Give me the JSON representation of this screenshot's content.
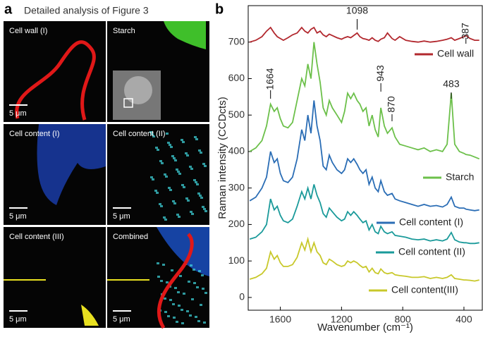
{
  "panel_a": {
    "letter": "a",
    "title": "Detailed analysis of Figure 3",
    "images": [
      {
        "label": "Cell wall (I)",
        "scale_bar": "5 μm"
      },
      {
        "label": "Starch"
      },
      {
        "label": "Cell content (I)",
        "scale_bar": "5 μm"
      },
      {
        "label": "Cell content (II)",
        "scale_bar": "5 μm"
      },
      {
        "label": "Cell content (III)",
        "scale_bar": "5 μm"
      },
      {
        "label": "Combined",
        "scale_bar": "5 μm"
      }
    ]
  },
  "chart_data": {
    "type": "line",
    "panel_letter": "b",
    "xlabel": "Wavenumber (cm⁻¹)",
    "ylabel": "Raman intensity (CCDcts)",
    "xlim": [
      1810,
      280
    ],
    "xticks": [
      1600,
      1200,
      800,
      400
    ],
    "ylim": [
      -35,
      800
    ],
    "yticks": [
      0,
      100,
      200,
      300,
      400,
      500,
      600,
      700
    ],
    "annotations": [
      1098,
      387,
      1664,
      943,
      870,
      483
    ],
    "x": [
      1800,
      1760,
      1720,
      1690,
      1664,
      1640,
      1620,
      1600,
      1580,
      1550,
      1520,
      1490,
      1460,
      1440,
      1420,
      1400,
      1380,
      1360,
      1340,
      1320,
      1300,
      1280,
      1260,
      1230,
      1200,
      1180,
      1160,
      1140,
      1120,
      1098,
      1080,
      1060,
      1040,
      1020,
      1000,
      980,
      960,
      943,
      920,
      900,
      870,
      850,
      820,
      780,
      740,
      700,
      660,
      620,
      580,
      540,
      510,
      483,
      460,
      430,
      400,
      387,
      360,
      330,
      300
    ],
    "series": [
      {
        "name": "Cell wall",
        "color": "#b2282e",
        "values": [
          700,
          705,
          715,
          730,
          740,
          725,
          715,
          710,
          705,
          712,
          720,
          725,
          740,
          730,
          725,
          735,
          740,
          725,
          730,
          720,
          715,
          722,
          718,
          712,
          708,
          712,
          715,
          712,
          718,
          725,
          715,
          710,
          708,
          705,
          712,
          705,
          702,
          708,
          712,
          725,
          710,
          705,
          715,
          705,
          702,
          700,
          703,
          700,
          702,
          705,
          708,
          712,
          705,
          710,
          715,
          718,
          710,
          705,
          705
        ]
      },
      {
        "name": "Starch",
        "color": "#6cc04a",
        "values": [
          400,
          410,
          430,
          470,
          530,
          510,
          520,
          490,
          470,
          465,
          480,
          540,
          600,
          580,
          640,
          600,
          700,
          640,
          590,
          520,
          500,
          540,
          520,
          500,
          480,
          510,
          560,
          545,
          560,
          540,
          530,
          510,
          520,
          470,
          500,
          460,
          440,
          520,
          470,
          450,
          465,
          440,
          420,
          415,
          410,
          405,
          410,
          400,
          405,
          400,
          420,
          560,
          420,
          400,
          395,
          392,
          390,
          385,
          380
        ]
      },
      {
        "name": "Cell content (I)",
        "color": "#2a6db5",
        "values": [
          265,
          275,
          300,
          330,
          400,
          370,
          380,
          340,
          320,
          315,
          330,
          380,
          460,
          430,
          500,
          450,
          540,
          470,
          430,
          360,
          350,
          390,
          370,
          350,
          340,
          350,
          380,
          370,
          380,
          365,
          350,
          340,
          350,
          310,
          330,
          300,
          290,
          320,
          290,
          280,
          285,
          270,
          265,
          260,
          255,
          250,
          255,
          250,
          252,
          248,
          255,
          275,
          250,
          245,
          245,
          242,
          240,
          238,
          240
        ]
      },
      {
        "name": "Cell content (II)",
        "color": "#1a9a9a",
        "values": [
          160,
          165,
          180,
          200,
          270,
          240,
          250,
          225,
          210,
          205,
          215,
          250,
          290,
          270,
          300,
          270,
          310,
          280,
          260,
          230,
          220,
          245,
          235,
          220,
          210,
          215,
          235,
          225,
          235,
          225,
          215,
          205,
          210,
          185,
          200,
          180,
          175,
          195,
          180,
          175,
          180,
          170,
          168,
          165,
          160,
          158,
          160,
          155,
          158,
          155,
          160,
          178,
          158,
          152,
          150,
          150,
          148,
          148,
          150
        ]
      },
      {
        "name": "Cell content(III)",
        "color": "#c8c82a",
        "values": [
          50,
          55,
          65,
          80,
          125,
          105,
          115,
          95,
          85,
          85,
          90,
          110,
          150,
          130,
          160,
          125,
          150,
          125,
          115,
          95,
          90,
          105,
          100,
          90,
          85,
          88,
          100,
          95,
          100,
          95,
          88,
          82,
          85,
          70,
          80,
          68,
          65,
          78,
          68,
          65,
          68,
          62,
          60,
          58,
          55,
          55,
          57,
          52,
          55,
          52,
          55,
          62,
          52,
          50,
          48,
          48,
          47,
          45,
          48
        ]
      }
    ]
  }
}
